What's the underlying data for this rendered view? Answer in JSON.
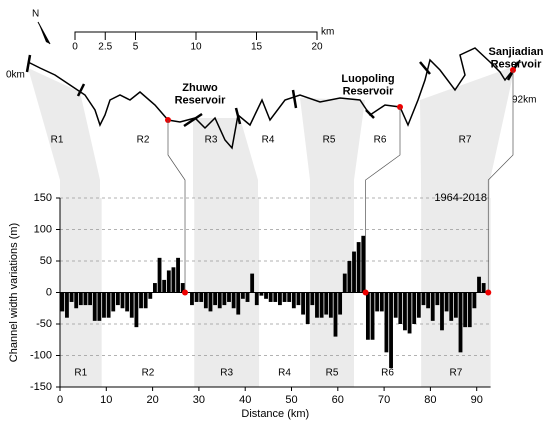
{
  "map": {
    "north": "N",
    "scale_unit": "km",
    "scale_ticks": [
      0,
      2.5,
      5,
      10,
      15,
      20
    ],
    "start_label": "0km",
    "end_label": "92km",
    "reservoirs": [
      "Zhuwo\nReservoir",
      "Luopoling\nReservoir",
      "Sanjiadian\nReservoir"
    ]
  },
  "chart_data": {
    "type": "bar",
    "xlabel": "Distance (km)",
    "ylabel": "Channel width variations (m)",
    "annotation": "1964-2018",
    "color": "#000000",
    "grid": true,
    "x": [
      0,
      1,
      2,
      3,
      4,
      5,
      6,
      7,
      8,
      9,
      10,
      11,
      12,
      13,
      14,
      15,
      16,
      17,
      18,
      19,
      20,
      21,
      22,
      23,
      24,
      25,
      26,
      27,
      28,
      29,
      30,
      31,
      32,
      33,
      34,
      35,
      36,
      37,
      38,
      39,
      40,
      41,
      42,
      43,
      44,
      45,
      46,
      47,
      48,
      49,
      50,
      51,
      52,
      53,
      54,
      55,
      56,
      57,
      58,
      59,
      60,
      61,
      62,
      63,
      64,
      65,
      66,
      67,
      68,
      69,
      70,
      71,
      72,
      73,
      74,
      75,
      76,
      77,
      78,
      79,
      80,
      81,
      82,
      83,
      84,
      85,
      86,
      87,
      88,
      89,
      90,
      91
    ],
    "values": [
      -30,
      -40,
      -15,
      -25,
      -20,
      -20,
      -20,
      -45,
      -45,
      -40,
      -40,
      -30,
      -20,
      -25,
      -30,
      -40,
      -55,
      -25,
      -25,
      -10,
      15,
      55,
      20,
      35,
      40,
      55,
      15,
      0,
      -20,
      -15,
      -15,
      -25,
      -30,
      -20,
      -25,
      -20,
      -15,
      -25,
      -35,
      -10,
      -15,
      30,
      -20,
      -5,
      -10,
      -15,
      -15,
      -20,
      -15,
      -15,
      -25,
      -20,
      -35,
      -50,
      -20,
      -40,
      -40,
      -35,
      -40,
      -70,
      -35,
      30,
      50,
      65,
      80,
      90,
      -75,
      -75,
      -30,
      -30,
      -95,
      -120,
      -40,
      -50,
      -60,
      -65,
      -50,
      -40,
      -20,
      -25,
      -45,
      -20,
      -60,
      -30,
      -45,
      -40,
      -95,
      -55,
      -55,
      -25,
      25,
      15
    ],
    "reservoir_x": [
      27,
      66,
      92.5
    ],
    "regions": [
      {
        "label": "R1",
        "start": 0,
        "end": 9,
        "shaded": true
      },
      {
        "label": "R2",
        "start": 9,
        "end": 29,
        "shaded": false
      },
      {
        "label": "R3",
        "start": 29,
        "end": 43,
        "shaded": true
      },
      {
        "label": "R4",
        "start": 43,
        "end": 54,
        "shaded": false
      },
      {
        "label": "R5",
        "start": 54,
        "end": 63.5,
        "shaded": true
      },
      {
        "label": "R6",
        "start": 63.5,
        "end": 78,
        "shaded": false
      },
      {
        "label": "R7",
        "start": 78,
        "end": 93,
        "shaded": true
      }
    ],
    "xlim": [
      0,
      93
    ],
    "xticks": [
      0,
      10,
      20,
      30,
      40,
      50,
      60,
      70,
      80,
      90
    ],
    "ylim": [
      -150,
      150
    ],
    "yticks": [
      -150,
      -100,
      -50,
      0,
      50,
      100,
      150
    ]
  }
}
